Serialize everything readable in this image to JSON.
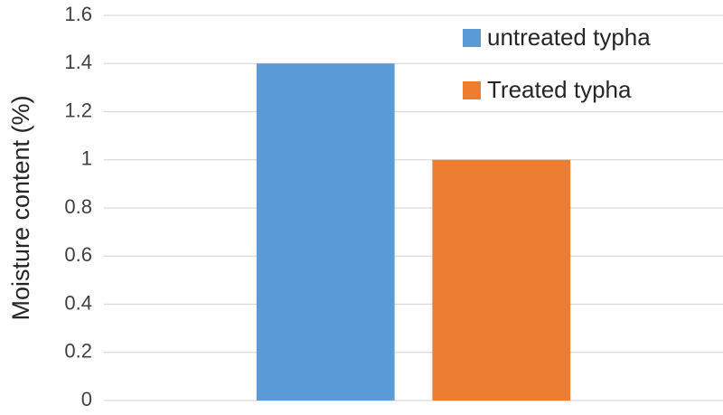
{
  "chart_data": {
    "type": "bar",
    "y_label": "Moisture content (%)",
    "categories": [
      null
    ],
    "series": [
      {
        "name": "untreated typha",
        "color": "#5b9bd5",
        "values": [
          1.4
        ]
      },
      {
        "name": "Treated typha",
        "color": "#ed7d31",
        "values": [
          1.0
        ]
      }
    ],
    "ylim": [
      0,
      1.6
    ],
    "yticks": [
      0,
      0.2,
      0.4,
      0.6,
      0.8,
      1,
      1.2,
      1.4,
      1.6
    ],
    "grid": true,
    "legend": "upper right"
  }
}
